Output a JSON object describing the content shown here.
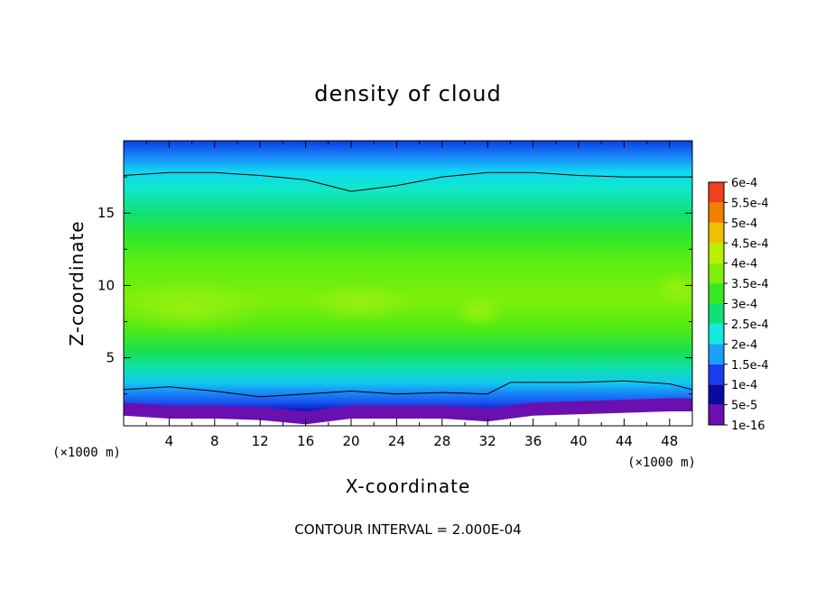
{
  "chart_data": {
    "type": "heatmap",
    "title": "density of cloud",
    "xlabel": "X-coordinate",
    "ylabel": "Z-coordinate",
    "x_unit": "(×1000 m)",
    "y_unit": "(×1000 m)",
    "xlim": [
      0,
      50
    ],
    "ylim": [
      0.3,
      20
    ],
    "x_ticks": [
      "4",
      "8",
      "12",
      "16",
      "20",
      "24",
      "28",
      "32",
      "36",
      "40",
      "44",
      "48"
    ],
    "y_ticks": [
      "5",
      "10",
      "15"
    ],
    "colorbar": {
      "labels": [
        "1e-16",
        "5e-5",
        "1e-4",
        "1.5e-4",
        "2e-4",
        "2.5e-4",
        "3e-4",
        "3.5e-4",
        "4e-4",
        "4.5e-4",
        "5e-4",
        "5.5e-4",
        "6e-4"
      ],
      "colors": [
        "#6a0fb0",
        "#0a0aa0",
        "#1a3ef0",
        "#1aa0f8",
        "#14e8e0",
        "#0ee07a",
        "#38e81e",
        "#80f00a",
        "#b8f000",
        "#f0c000",
        "#f08000",
        "#f04020",
        "#f07070"
      ]
    },
    "contour_lines": [
      {
        "x": [
          0,
          4,
          8,
          12,
          16,
          20,
          24,
          28,
          32,
          36,
          40,
          44,
          48,
          50
        ],
        "y": [
          17.6,
          17.8,
          17.8,
          17.6,
          17.3,
          16.5,
          16.9,
          17.5,
          17.8,
          17.8,
          17.6,
          17.5,
          17.5,
          17.5
        ]
      },
      {
        "x": [
          0,
          4,
          8,
          12,
          16,
          20,
          24,
          28,
          32,
          34,
          36,
          40,
          44,
          48,
          50
        ],
        "y": [
          2.8,
          3.0,
          2.7,
          2.3,
          2.5,
          2.7,
          2.5,
          2.6,
          2.5,
          3.3,
          3.3,
          3.3,
          3.4,
          3.2,
          2.8
        ]
      }
    ],
    "field_bands_center": {
      "x": [
        0,
        4,
        8,
        12,
        16,
        20,
        24,
        28,
        32,
        36,
        40,
        44,
        48,
        50
      ],
      "z_bottom_edge": [
        1.2,
        1.0,
        1.0,
        0.9,
        0.6,
        1.0,
        1.0,
        1.0,
        0.8,
        1.2,
        1.3,
        1.4,
        1.5,
        1.5
      ]
    },
    "note": "CONTOUR INTERVAL = 2.000E-04"
  }
}
